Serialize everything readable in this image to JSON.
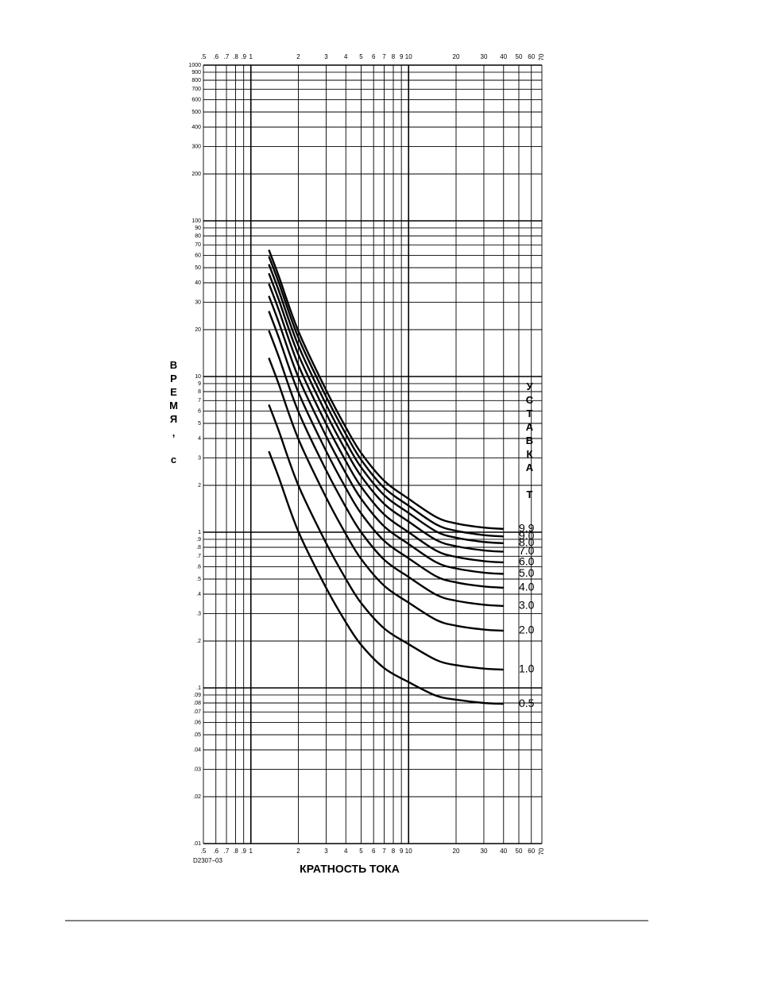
{
  "chart_data": {
    "type": "line",
    "y_label": "ВРЕМЯ, с",
    "x_label": "КРАТНОСТЬ ТОКА",
    "legend_title": "УСТАВКА Т",
    "code": "D2307–03",
    "x_scale": "log",
    "y_scale": "log",
    "grid": true,
    "color": "#000000",
    "xlim": [
      0.5,
      70
    ],
    "ylim": [
      0.01,
      1000
    ],
    "xticks": [
      {
        "value": 0.5,
        "label": ".5"
      },
      {
        "value": 0.6,
        "label": ".6"
      },
      {
        "value": 0.7,
        "label": ".7"
      },
      {
        "value": 0.8,
        "label": ".8"
      },
      {
        "value": 0.9,
        "label": ".9"
      },
      1,
      2,
      3,
      4,
      5,
      6,
      7,
      8,
      9,
      10,
      20,
      30,
      40,
      50,
      60,
      70
    ],
    "yticks": [
      1000,
      900,
      800,
      700,
      600,
      500,
      400,
      300,
      200,
      100,
      90,
      80,
      70,
      60,
      50,
      40,
      30,
      20,
      10,
      9,
      8,
      7,
      6,
      5,
      4,
      3,
      2,
      1,
      {
        "value": 0.9,
        "label": ".9"
      },
      {
        "value": 0.8,
        "label": ".8"
      },
      {
        "value": 0.7,
        "label": ".7"
      },
      {
        "value": 0.6,
        "label": ".6"
      },
      {
        "value": 0.5,
        "label": ".5"
      },
      {
        "value": 0.4,
        "label": ".4"
      },
      {
        "value": 0.3,
        "label": ".3"
      },
      {
        "value": 0.2,
        "label": ".2"
      },
      {
        "value": 0.1,
        "label": ".1"
      },
      {
        "value": 0.09,
        "label": ".09"
      },
      {
        "value": 0.08,
        "label": ".08"
      },
      {
        "value": 0.07,
        "label": ".07"
      },
      {
        "value": 0.06,
        "label": ".06"
      },
      {
        "value": 0.05,
        "label": ".05"
      },
      {
        "value": 0.04,
        "label": ".04"
      },
      {
        "value": 0.03,
        "label": ".03"
      },
      {
        "value": 0.02,
        "label": ".02"
      },
      {
        "value": 0.01,
        "label": ".01"
      }
    ],
    "x": [
      1.3,
      1.5,
      2,
      3,
      4,
      5,
      7,
      10,
      15,
      20,
      30,
      40
    ],
    "series": [
      {
        "name": "0.5",
        "values": [
          3.31,
          2.26,
          1.01,
          0.439,
          0.264,
          0.189,
          0.134,
          0.109,
          0.089,
          0.084,
          0.08,
          0.079
        ]
      },
      {
        "name": "1.0",
        "values": [
          6.6,
          4.5,
          2.0,
          0.851,
          0.501,
          0.351,
          0.241,
          0.191,
          0.151,
          0.14,
          0.133,
          0.131
        ]
      },
      {
        "name": "2.0",
        "values": [
          13.17,
          8.97,
          3.97,
          1.67,
          0.973,
          0.673,
          0.453,
          0.353,
          0.273,
          0.251,
          0.237,
          0.233
        ]
      },
      {
        "name": "3.0",
        "values": [
          19.75,
          13.45,
          5.95,
          2.5,
          1.45,
          1.0,
          0.666,
          0.516,
          0.396,
          0.363,
          0.342,
          0.336
        ]
      },
      {
        "name": "4.0",
        "values": [
          26.3,
          17.9,
          7.92,
          3.32,
          1.92,
          1.32,
          0.88,
          0.68,
          0.52,
          0.476,
          0.448,
          0.44
        ]
      },
      {
        "name": "5.0",
        "values": [
          32.9,
          22.4,
          9.89,
          4.14,
          2.39,
          1.64,
          1.09,
          0.84,
          0.64,
          0.585,
          0.55,
          0.54
        ]
      },
      {
        "name": "6.0",
        "values": [
          39.5,
          26.9,
          11.86,
          4.96,
          2.86,
          1.96,
          1.3,
          1.0,
          0.76,
          0.694,
          0.652,
          0.64
        ]
      },
      {
        "name": "7.0",
        "values": [
          46.0,
          31.3,
          13.84,
          5.79,
          3.34,
          2.29,
          1.52,
          1.17,
          0.89,
          0.813,
          0.764,
          0.75
        ]
      },
      {
        "name": "8.0",
        "values": [
          52.6,
          35.8,
          15.81,
          6.61,
          3.81,
          2.61,
          1.73,
          1.33,
          1.01,
          0.922,
          0.866,
          0.85
        ]
      },
      {
        "name": "9.0",
        "values": [
          59.2,
          40.3,
          17.77,
          7.42,
          4.27,
          2.92,
          1.93,
          1.48,
          1.12,
          1.021,
          0.958,
          0.94
        ]
      },
      {
        "name": "9.9",
        "values": [
          65.1,
          44.3,
          19.56,
          8.18,
          4.71,
          3.23,
          2.14,
          1.64,
          1.25,
          1.139,
          1.07,
          1.05
        ]
      }
    ]
  }
}
